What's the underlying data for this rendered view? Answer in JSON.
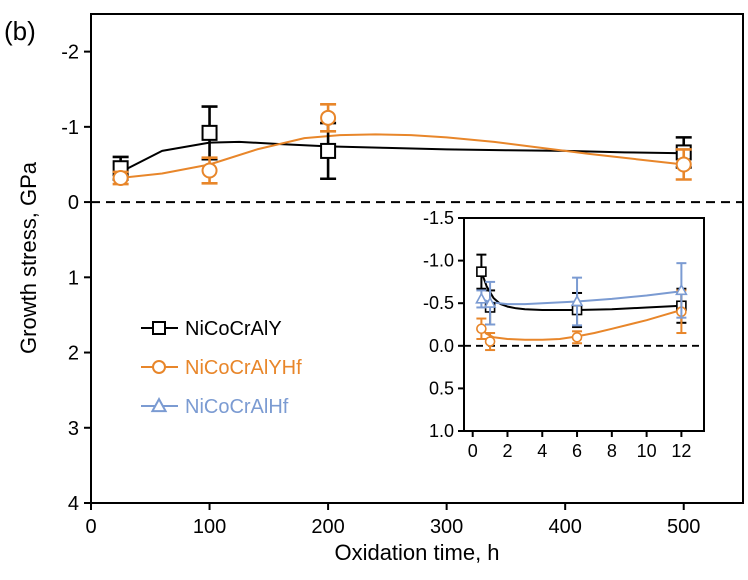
{
  "panel_label": "(b)",
  "chart_data": [
    {
      "type": "line",
      "id": "main",
      "xlabel": "Oxidation time, h",
      "ylabel": "Growth stress, GPa",
      "xlim": [
        0,
        550
      ],
      "ylim": [
        4,
        -2.5
      ],
      "y_inverted": true,
      "xticks": [
        0,
        100,
        200,
        300,
        400,
        500
      ],
      "xtick_labels": [
        "0",
        "100",
        "200",
        "300",
        "400",
        "500"
      ],
      "yticks": [
        -2,
        -1,
        0,
        1,
        2,
        3,
        4
      ],
      "ytick_labels": [
        "-2",
        "-1",
        "0",
        "1",
        "2",
        "3",
        "4"
      ],
      "reference_line": 0,
      "grid": false,
      "legend_position": "left",
      "series": [
        {
          "name": "NiCoCrAlY",
          "color": "#000000",
          "marker": "square",
          "x": [
            25,
            100,
            200,
            500
          ],
          "y": [
            -0.45,
            -0.92,
            -0.68,
            -0.66
          ],
          "err": [
            0.15,
            0.35,
            0.37,
            0.2
          ],
          "fit_x": [
            25,
            60,
            100,
            125,
            160,
            200,
            250,
            300,
            350,
            400,
            450,
            500
          ],
          "fit_y": [
            -0.4,
            -0.68,
            -0.79,
            -0.8,
            -0.77,
            -0.74,
            -0.72,
            -0.7,
            -0.69,
            -0.68,
            -0.66,
            -0.65
          ]
        },
        {
          "name": "NiCoCrAlYHf",
          "color": "#E8862A",
          "marker": "circle",
          "x": [
            25,
            100,
            200,
            500
          ],
          "y": [
            -0.32,
            -0.42,
            -1.12,
            -0.5
          ],
          "err": [
            0.08,
            0.17,
            0.18,
            0.2
          ],
          "fit_x": [
            25,
            60,
            100,
            140,
            180,
            210,
            240,
            270,
            300,
            340,
            380,
            420,
            460,
            500
          ],
          "fit_y": [
            -0.32,
            -0.38,
            -0.5,
            -0.7,
            -0.85,
            -0.89,
            -0.9,
            -0.89,
            -0.86,
            -0.8,
            -0.72,
            -0.64,
            -0.57,
            -0.5
          ]
        },
        {
          "name": "NiCoCrAlHf",
          "color": "#7B9BD2",
          "marker": "triangle"
        }
      ]
    },
    {
      "type": "line",
      "id": "inset",
      "xlabel": "",
      "ylabel": "",
      "xlim": [
        -0.5,
        13.3
      ],
      "ylim": [
        1.0,
        -1.5
      ],
      "y_inverted": true,
      "xticks": [
        0,
        2,
        4,
        6,
        8,
        10,
        12
      ],
      "xtick_labels": [
        "0",
        "2",
        "4",
        "6",
        "8",
        "10",
        "12"
      ],
      "yticks": [
        -1.5,
        -1.0,
        -0.5,
        0.0,
        0.5,
        1.0
      ],
      "ytick_labels": [
        "-1.5",
        "-1.0",
        "-0.5",
        "0.0",
        "0.5",
        "1.0"
      ],
      "reference_line": 0,
      "grid": false,
      "series": [
        {
          "name": "NiCoCrAlY",
          "color": "#000000",
          "marker": "square",
          "x": [
            0.5,
            1,
            6,
            12
          ],
          "y": [
            -0.87,
            -0.45,
            -0.42,
            -0.47
          ],
          "err": [
            0.2,
            0.2,
            0.2,
            0.2
          ],
          "fit_x": [
            0.5,
            0.8,
            1.2,
            1.6,
            2.0,
            2.5,
            3,
            4,
            6,
            8,
            10,
            12
          ],
          "fit_y": [
            -0.87,
            -0.7,
            -0.56,
            -0.49,
            -0.46,
            -0.44,
            -0.43,
            -0.42,
            -0.42,
            -0.43,
            -0.45,
            -0.47
          ]
        },
        {
          "name": "NiCoCrAlYHf",
          "color": "#E8862A",
          "marker": "circle",
          "x": [
            0.5,
            1,
            6,
            12
          ],
          "y": [
            -0.2,
            -0.05,
            -0.1,
            -0.4
          ],
          "err": [
            0.12,
            0.1,
            0.07,
            0.25
          ],
          "fit_x": [
            0.5,
            0.8,
            1.2,
            2,
            3,
            4,
            5,
            6,
            7,
            8,
            9,
            10,
            11,
            12
          ],
          "fit_y": [
            -0.2,
            -0.14,
            -0.1,
            -0.08,
            -0.07,
            -0.07,
            -0.08,
            -0.11,
            -0.15,
            -0.2,
            -0.25,
            -0.3,
            -0.36,
            -0.42
          ]
        },
        {
          "name": "NiCoCrAlHf",
          "color": "#7B9BD2",
          "marker": "triangle",
          "x": [
            0.5,
            1,
            6,
            12
          ],
          "y": [
            -0.55,
            -0.5,
            -0.52,
            -0.65
          ],
          "err": [
            0.1,
            0.25,
            0.28,
            0.32
          ],
          "fit_x": [
            0.5,
            1,
            2,
            3,
            4,
            6,
            8,
            10,
            12
          ],
          "fit_y": [
            -0.55,
            -0.51,
            -0.49,
            -0.49,
            -0.5,
            -0.52,
            -0.55,
            -0.59,
            -0.64
          ]
        }
      ]
    }
  ]
}
